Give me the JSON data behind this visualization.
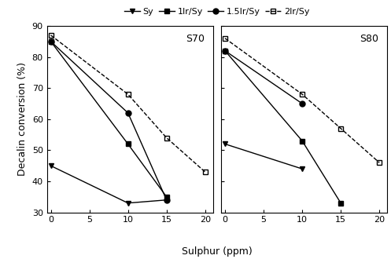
{
  "S70": {
    "Sy": {
      "x": [
        0,
        10,
        15
      ],
      "y": [
        45,
        33,
        34
      ]
    },
    "1Ir_Sy": {
      "x": [
        0,
        10,
        15
      ],
      "y": [
        85,
        52,
        35
      ]
    },
    "1p5Ir_Sy": {
      "x": [
        0,
        10,
        15
      ],
      "y": [
        85,
        62,
        34
      ]
    },
    "2Ir_Sy": {
      "x": [
        0,
        10,
        15,
        20
      ],
      "y": [
        87,
        68,
        54,
        43
      ]
    }
  },
  "S80": {
    "Sy": {
      "x": [
        0,
        10
      ],
      "y": [
        52,
        44
      ]
    },
    "1Ir_Sy": {
      "x": [
        0,
        10,
        15
      ],
      "y": [
        82,
        53,
        33
      ]
    },
    "1p5Ir_Sy": {
      "x": [
        0,
        10
      ],
      "y": [
        82,
        65
      ]
    },
    "2Ir_Sy": {
      "x": [
        0,
        10,
        15,
        20
      ],
      "y": [
        86,
        68,
        57,
        46
      ]
    }
  },
  "ylim": [
    30,
    90
  ],
  "xlim": [
    -0.5,
    21
  ],
  "yticks": [
    30,
    40,
    50,
    60,
    70,
    80,
    90
  ],
  "xticks": [
    0,
    5,
    10,
    15,
    20
  ],
  "ylabel": "Decalin conversion (%)",
  "xlabel": "Sulphur (ppm)",
  "labels": [
    "Sy",
    "1Ir/Sy",
    "1.5Ir/Sy",
    "2Ir/Sy"
  ],
  "colors": [
    "black",
    "black",
    "black",
    "black"
  ],
  "markers": [
    "v",
    "s",
    "o",
    "s"
  ],
  "fillstyles": [
    "full",
    "full",
    "full",
    "none"
  ],
  "linestyles": [
    "-",
    "-",
    "-",
    "--"
  ],
  "panel_labels": [
    "S70",
    "S80"
  ],
  "legend_fontsize": 8,
  "axis_fontsize": 9,
  "tick_fontsize": 8,
  "marker_size": 5
}
